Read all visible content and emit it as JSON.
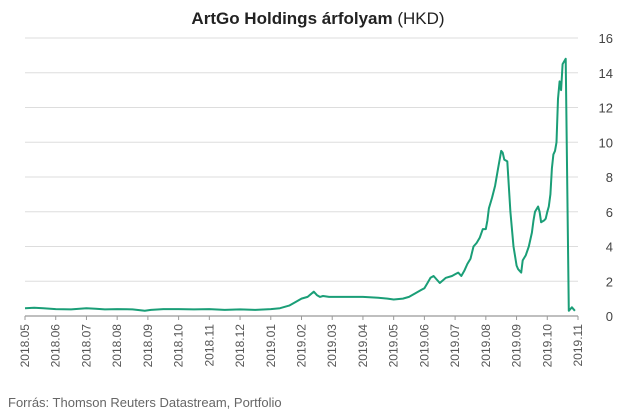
{
  "chart_data": {
    "type": "line",
    "title_main": "ArtGo Holdings árfolyam",
    "title_unit": "(HKD)",
    "source": "Forrás: Thomson Reuters Datastream, Portfolio",
    "ylim": [
      0,
      16
    ],
    "yticks": [
      0,
      2,
      4,
      6,
      8,
      10,
      12,
      14,
      16
    ],
    "y_axis_side": "right",
    "grid": true,
    "x_tick_labels": [
      "2018.05",
      "2018.06",
      "2018.07",
      "2018.08",
      "2018.09",
      "2018.10",
      "2018.11",
      "2018.12",
      "2019.01",
      "2019.02",
      "2019.03",
      "2019.04",
      "2019.05",
      "2019.06",
      "2019.07",
      "2019.08",
      "2019.09",
      "2019.10",
      "2019.11"
    ],
    "colors": {
      "line": "#1a9e77",
      "grid": "#dddddd",
      "axis": "#999999"
    },
    "series": [
      {
        "x": [
          0,
          0.3,
          0.6,
          1,
          1.5,
          2,
          2.3,
          2.6,
          3,
          3.5,
          3.9,
          4.1,
          4.5,
          5,
          5.5,
          6,
          6.5,
          7,
          7.5,
          8,
          8.3,
          8.6,
          8.8,
          9,
          9.2,
          9.4,
          9.5,
          9.6,
          9.7,
          9.9,
          10,
          10.5,
          11,
          11.5,
          11.8,
          12,
          12.3,
          12.5,
          12.7,
          12.9,
          13,
          13.1,
          13.2,
          13.3,
          13.5,
          13.7,
          13.9,
          14,
          14.1,
          14.2,
          14.3,
          14.4,
          14.5,
          14.6,
          14.7,
          14.8,
          14.9,
          15,
          15.05,
          15.1,
          15.2,
          15.3,
          15.4,
          15.5,
          15.55,
          15.6,
          15.7,
          15.8,
          15.9,
          16,
          16.05,
          16.1,
          16.15,
          16.2,
          16.3,
          16.4,
          16.5,
          16.55,
          16.6,
          16.7,
          16.75,
          16.8,
          16.9,
          16.95,
          17,
          17.05,
          17.1,
          17.15,
          17.2,
          17.25,
          17.3,
          17.35,
          17.4,
          17.45,
          17.5,
          17.6,
          17.7,
          17.8,
          17.9
        ],
        "values": [
          0.45,
          0.48,
          0.45,
          0.4,
          0.38,
          0.45,
          0.42,
          0.38,
          0.4,
          0.38,
          0.3,
          0.35,
          0.4,
          0.4,
          0.38,
          0.4,
          0.35,
          0.38,
          0.35,
          0.4,
          0.45,
          0.6,
          0.8,
          1.0,
          1.1,
          1.4,
          1.2,
          1.1,
          1.15,
          1.1,
          1.1,
          1.1,
          1.1,
          1.05,
          1.0,
          0.95,
          1.0,
          1.1,
          1.3,
          1.5,
          1.6,
          1.9,
          2.2,
          2.3,
          1.9,
          2.2,
          2.3,
          2.4,
          2.5,
          2.3,
          2.6,
          3.0,
          3.3,
          4.0,
          4.2,
          4.5,
          5.0,
          5.0,
          5.5,
          6.2,
          6.8,
          7.5,
          8.5,
          9.5,
          9.4,
          9.0,
          8.9,
          6.0,
          4.0,
          2.9,
          2.7,
          2.6,
          2.5,
          3.2,
          3.5,
          4.0,
          4.8,
          5.5,
          6.0,
          6.3,
          6.0,
          5.4,
          5.5,
          5.6,
          6.0,
          6.3,
          7.0,
          8.5,
          9.3,
          9.5,
          10.0,
          12.5,
          13.5,
          13.0,
          14.5,
          14.8,
          0.3,
          0.5,
          0.3
        ]
      }
    ]
  }
}
